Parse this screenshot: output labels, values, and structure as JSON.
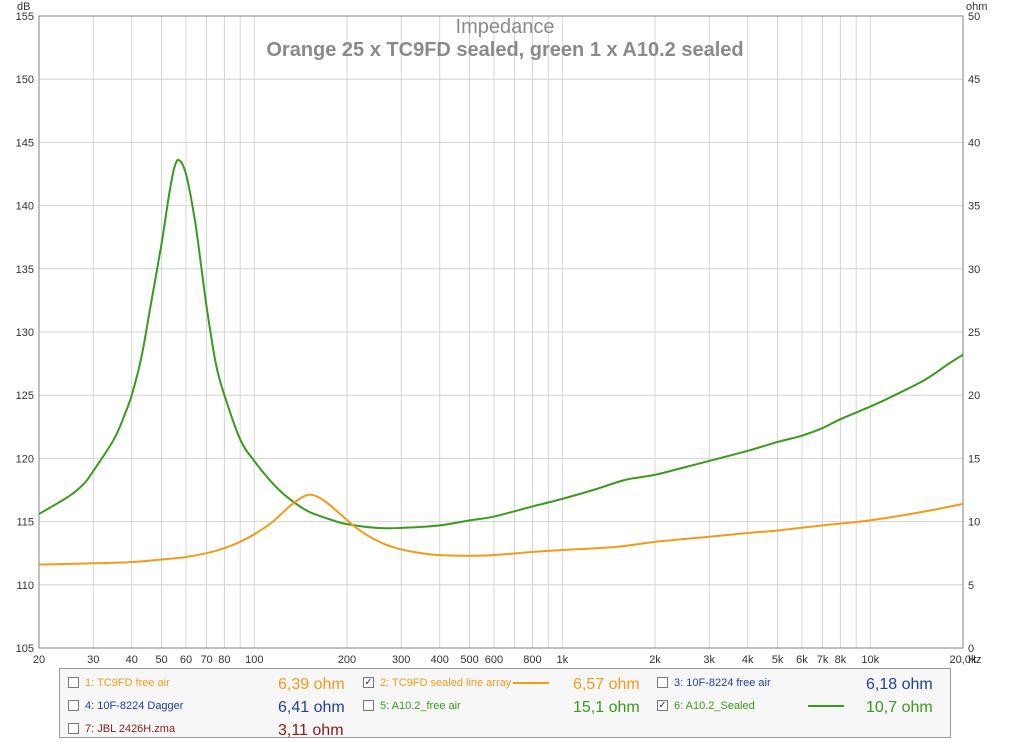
{
  "chart_data": {
    "type": "line",
    "title": "Impedance",
    "subtitle": "Orange 25 x TC9FD sealed, green 1 x A10.2 sealed",
    "y_left_unit": "dB",
    "y_right_unit": "ohm",
    "x_unit": "Hz",
    "x_scale": "log",
    "xlim": [
      20,
      20000
    ],
    "ylim_left": [
      105,
      155
    ],
    "ylim_right": [
      0,
      50
    ],
    "grid": true,
    "x_ticks": [
      {
        "value": 20,
        "label": "20"
      },
      {
        "value": 30,
        "label": "30"
      },
      {
        "value": 40,
        "label": "40"
      },
      {
        "value": 50,
        "label": "50"
      },
      {
        "value": 60,
        "label": "60"
      },
      {
        "value": 70,
        "label": "70"
      },
      {
        "value": 80,
        "label": "80"
      },
      {
        "value": 100,
        "label": "100"
      },
      {
        "value": 200,
        "label": "200"
      },
      {
        "value": 300,
        "label": "300"
      },
      {
        "value": 400,
        "label": "400"
      },
      {
        "value": 500,
        "label": "500"
      },
      {
        "value": 600,
        "label": "600"
      },
      {
        "value": 800,
        "label": "800"
      },
      {
        "value": 1000,
        "label": "1k"
      },
      {
        "value": 2000,
        "label": "2k"
      },
      {
        "value": 3000,
        "label": "3k"
      },
      {
        "value": 4000,
        "label": "4k"
      },
      {
        "value": 5000,
        "label": "5k"
      },
      {
        "value": 6000,
        "label": "6k"
      },
      {
        "value": 7000,
        "label": "7k"
      },
      {
        "value": 8000,
        "label": "8k"
      },
      {
        "value": 10000,
        "label": "10k"
      },
      {
        "value": 20000,
        "label": "20,0k"
      }
    ],
    "y_left_ticks": [
      "105",
      "110",
      "115",
      "120",
      "125",
      "130",
      "135",
      "140",
      "145",
      "150",
      "155"
    ],
    "y_right_ticks": [
      "0",
      "5",
      "10",
      "15",
      "20",
      "25",
      "30",
      "35",
      "40",
      "45",
      "50"
    ],
    "series": [
      {
        "name": "A10.2_Sealed",
        "color": "#3a9a1c",
        "axis": "right",
        "points": [
          [
            20,
            10.6
          ],
          [
            25,
            12.0
          ],
          [
            28,
            13.0
          ],
          [
            30,
            14.0
          ],
          [
            35,
            16.5
          ],
          [
            38,
            18.5
          ],
          [
            40,
            20.0
          ],
          [
            43,
            23.0
          ],
          [
            46,
            27.0
          ],
          [
            50,
            32.0
          ],
          [
            53,
            36.0
          ],
          [
            55,
            38.0
          ],
          [
            57,
            38.6
          ],
          [
            60,
            37.5
          ],
          [
            64,
            34.0
          ],
          [
            67,
            30.5
          ],
          [
            70,
            27.0
          ],
          [
            75,
            22.5
          ],
          [
            80,
            20.0
          ],
          [
            90,
            16.5
          ],
          [
            100,
            14.8
          ],
          [
            115,
            13.0
          ],
          [
            130,
            11.8
          ],
          [
            150,
            10.8
          ],
          [
            180,
            10.1
          ],
          [
            200,
            9.8
          ],
          [
            250,
            9.5
          ],
          [
            300,
            9.5
          ],
          [
            400,
            9.7
          ],
          [
            500,
            10.1
          ],
          [
            600,
            10.4
          ],
          [
            800,
            11.2
          ],
          [
            1000,
            11.8
          ],
          [
            1300,
            12.6
          ],
          [
            1600,
            13.3
          ],
          [
            2000,
            13.7
          ],
          [
            2500,
            14.3
          ],
          [
            3000,
            14.8
          ],
          [
            4000,
            15.6
          ],
          [
            5000,
            16.3
          ],
          [
            6000,
            16.8
          ],
          [
            7000,
            17.4
          ],
          [
            8000,
            18.1
          ],
          [
            10000,
            19.1
          ],
          [
            12000,
            20.0
          ],
          [
            15000,
            21.2
          ],
          [
            18000,
            22.5
          ],
          [
            20000,
            23.2
          ]
        ]
      },
      {
        "name": "TC9FD sealed line array",
        "color": "#f29b1a",
        "axis": "right",
        "points": [
          [
            20,
            6.6
          ],
          [
            30,
            6.7
          ],
          [
            40,
            6.8
          ],
          [
            50,
            7.0
          ],
          [
            60,
            7.2
          ],
          [
            70,
            7.5
          ],
          [
            80,
            7.9
          ],
          [
            90,
            8.4
          ],
          [
            100,
            9.0
          ],
          [
            115,
            10.0
          ],
          [
            130,
            11.2
          ],
          [
            145,
            12.0
          ],
          [
            155,
            12.1
          ],
          [
            170,
            11.6
          ],
          [
            190,
            10.6
          ],
          [
            220,
            9.3
          ],
          [
            260,
            8.3
          ],
          [
            300,
            7.8
          ],
          [
            350,
            7.5
          ],
          [
            400,
            7.35
          ],
          [
            500,
            7.3
          ],
          [
            600,
            7.35
          ],
          [
            800,
            7.6
          ],
          [
            1000,
            7.75
          ],
          [
            1500,
            8.0
          ],
          [
            2000,
            8.4
          ],
          [
            3000,
            8.8
          ],
          [
            4000,
            9.1
          ],
          [
            5000,
            9.3
          ],
          [
            7000,
            9.7
          ],
          [
            10000,
            10.1
          ],
          [
            15000,
            10.8
          ],
          [
            20000,
            11.4
          ]
        ]
      }
    ]
  },
  "legend": {
    "items": [
      {
        "label": "1: TC9FD free air",
        "checked": false,
        "swatch": false,
        "value": "6,39 ohm",
        "color": "#f29b1a"
      },
      {
        "label": "2: TC9FD sealed line array",
        "checked": true,
        "swatch": true,
        "value": "6,57 ohm",
        "color": "#f29b1a"
      },
      {
        "label": "3: 10F-8224 free air",
        "checked": false,
        "swatch": false,
        "value": "6,18 ohm",
        "color": "#1f3fa0"
      },
      {
        "label": "4: 10F-8224 Dagger",
        "checked": false,
        "swatch": false,
        "value": "6,41 ohm",
        "color": "#1f3fa0"
      },
      {
        "label": "5: A10.2_free air",
        "checked": false,
        "swatch": false,
        "value": "15,1 ohm",
        "color": "#3a9a1c"
      },
      {
        "label": "6: A10.2_Sealed",
        "checked": true,
        "swatch": true,
        "value": "10,7 ohm",
        "color": "#3a9a1c"
      },
      {
        "label": "7: JBL 2426H.zma",
        "checked": false,
        "swatch": false,
        "value": "3,11 ohm",
        "color": "#8a1a1a"
      }
    ],
    "check_mark": "✓"
  }
}
